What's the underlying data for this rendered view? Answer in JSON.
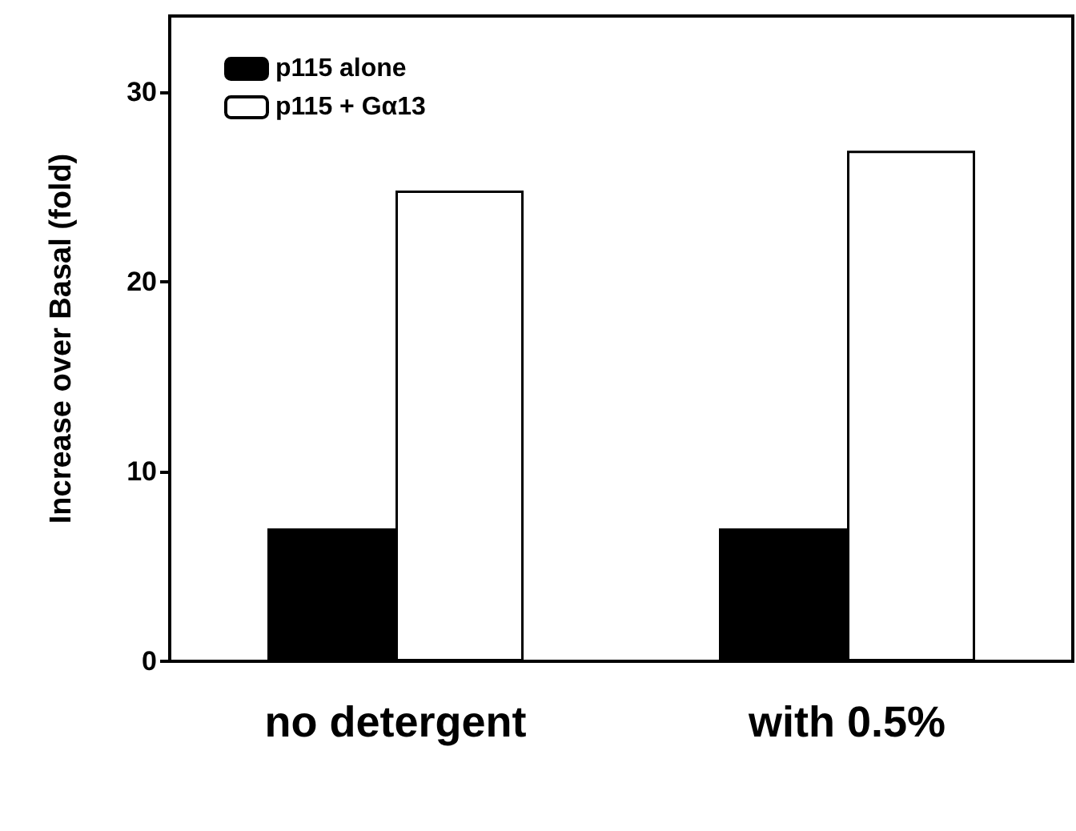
{
  "chart_data": {
    "type": "bar",
    "ylabel": "Increase over Basal (fold)",
    "categories": [
      "no detergent",
      "with 0.5%"
    ],
    "series": [
      {
        "name": "p115 alone",
        "color": "#000000",
        "values": [
          7,
          7
        ]
      },
      {
        "name": "p115 + Gα13",
        "color": "#ffffff",
        "values": [
          24.8,
          26.9
        ]
      }
    ],
    "ylim": [
      0,
      34
    ],
    "yticks": [
      0,
      10,
      20,
      30
    ],
    "grid": false,
    "legend": "top left"
  }
}
